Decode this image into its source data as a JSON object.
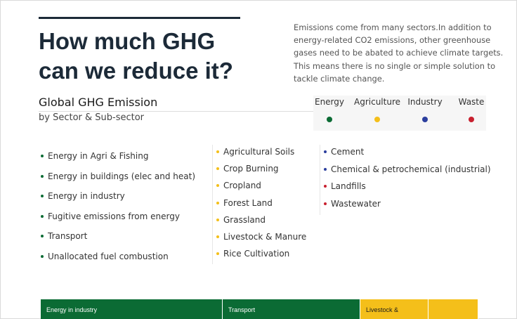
{
  "headline": [
    "How much GHG",
    "can we reduce it?"
  ],
  "intro": [
    "Emissions come from many sectors.In addition to",
    "energy-related CO2 emissions, other greenhouse",
    "gases need to be abated to achieve climate targets.",
    "This means there is no single or simple solution to",
    "tackle climate change."
  ],
  "chart_data": {
    "type": "treemap",
    "title": "Global GHG Emission",
    "subtitle": "by Sector & Sub-sector",
    "legend": [
      {
        "name": "Energy",
        "color": "#0b6b34"
      },
      {
        "name": "Agriculture",
        "color": "#f4bf1a"
      },
      {
        "name": "Industry",
        "color": "#2c3f9e"
      },
      {
        "name": "Waste",
        "color": "#c8202f"
      }
    ],
    "sector_lists": [
      {
        "sector": "Energy",
        "color": "#0b6b34",
        "items": [
          "Energy in Agri & Fishing",
          "Energy in buildings (elec and heat)",
          "Energy in industry",
          "Fugitive emissions from energy",
          "Transport",
          "Unallocated fuel combustion"
        ]
      },
      {
        "sector": "Agriculture",
        "color": "#f4bf1a",
        "items": [
          "Agricultural Soils",
          "Crop Burning",
          "Cropland",
          "Forest Land",
          "Grassland",
          "Livestock & Manure",
          "Rice Cultivation"
        ]
      },
      {
        "sector": "Industry",
        "color": "#2c3f9e",
        "items": [
          "Cement",
          "Chemical & petrochemical (industrial)"
        ]
      },
      {
        "sector": "Waste",
        "color": "#c8202f",
        "items": [
          "Landfills",
          "Wastewater"
        ]
      }
    ],
    "tiles": [
      {
        "label": "Energy in industry",
        "sector": "Energy",
        "color": "#0b6b34",
        "share": 0.415
      },
      {
        "label": "Transport",
        "sector": "Energy",
        "color": "#0b6b34",
        "share": 0.315
      },
      {
        "label": "Livestock &",
        "sector": "Agriculture",
        "color": "#f4bf1a",
        "share": 0.155
      },
      {
        "label": "",
        "sector": "Agriculture",
        "color": "#f4bf1a",
        "share": 0.115
      }
    ]
  }
}
